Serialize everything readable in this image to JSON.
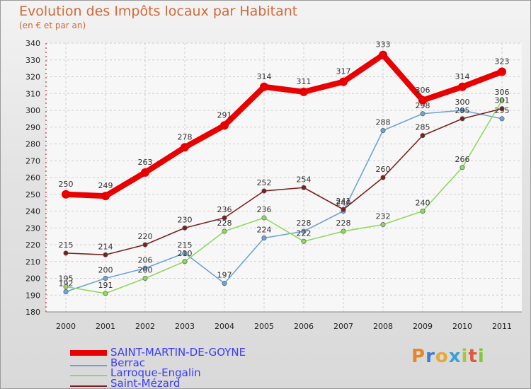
{
  "header": {
    "title": "Evolution des Impôts locaux par Habitant",
    "subtitle": "(en € et par an)"
  },
  "logo": {
    "text": "Proxiti"
  },
  "chart_data": {
    "type": "line",
    "title": "Evolution des Impôts locaux par Habitant",
    "subtitle": "(en € et par an)",
    "xlabel": "",
    "ylabel": "",
    "x": [
      "2000",
      "2001",
      "2002",
      "2003",
      "2004",
      "2005",
      "2006",
      "2007",
      "2008",
      "2009",
      "2010",
      "2011"
    ],
    "ylim": [
      180,
      340
    ],
    "yticks": [
      180,
      190,
      200,
      210,
      220,
      230,
      240,
      250,
      260,
      270,
      280,
      290,
      300,
      310,
      320,
      330,
      340
    ],
    "grid": true,
    "legend_position": "bottom-left",
    "series": [
      {
        "name": "SAINT-MARTIN-DE-GOYNE",
        "color": "#e80000",
        "values": [
          250,
          249,
          263,
          278,
          291,
          314,
          311,
          317,
          333,
          306,
          314,
          323
        ]
      },
      {
        "name": "Berrac",
        "color": "#6fa3d8",
        "values": [
          192,
          200,
          206,
          215,
          197,
          224,
          228,
          240,
          288,
          298,
          300,
          295
        ]
      },
      {
        "name": "Larroque-Engalin",
        "color": "#8fd85f",
        "values": [
          195,
          191,
          200,
          210,
          228,
          236,
          222,
          228,
          232,
          240,
          266,
          306
        ]
      },
      {
        "name": "Saint-Mézard",
        "color": "#7a2020",
        "values": [
          215,
          214,
          220,
          230,
          236,
          252,
          254,
          241,
          260,
          285,
          295,
          301
        ]
      }
    ]
  }
}
